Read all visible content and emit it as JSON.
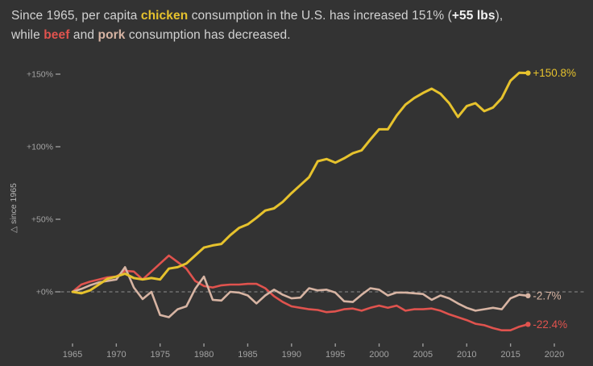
{
  "title": {
    "part1": "Since 1965, per capita ",
    "chicken_word": "chicken",
    "part2": " consumption in the U.S. has increased 151% (",
    "lbs_text": "+55 lbs",
    "part3": "),",
    "part4": "while ",
    "beef_word": "beef",
    "part5": " and ",
    "pork_word": "pork",
    "part6": " consumption has decreased."
  },
  "colors": {
    "background": "#333333",
    "title_text": "#d2d2d2",
    "chicken": "#e6c22d",
    "beef": "#e0534e",
    "pork": "#d7b4a3",
    "axis_text": "#a3a3a3",
    "tick_mark": "#9a9a9a",
    "zero_line": "#8c8c8c"
  },
  "chart_data": {
    "type": "line",
    "ylabel": "△ since 1965",
    "x": [
      1965,
      1966,
      1967,
      1968,
      1969,
      1970,
      1971,
      1972,
      1973,
      1974,
      1975,
      1976,
      1977,
      1978,
      1979,
      1980,
      1981,
      1982,
      1983,
      1984,
      1985,
      1986,
      1987,
      1988,
      1989,
      1990,
      1991,
      1992,
      1993,
      1994,
      1995,
      1996,
      1997,
      1998,
      1999,
      2000,
      2001,
      2002,
      2003,
      2004,
      2005,
      2006,
      2007,
      2008,
      2009,
      2010,
      2011,
      2012,
      2013,
      2014,
      2015,
      2016,
      2017
    ],
    "series": [
      {
        "name": "chicken",
        "color": "#e6c22d",
        "end_label": "+150.8%",
        "values": [
          0,
          -1,
          1,
          5,
          9,
          10.5,
          12.5,
          9.5,
          8.5,
          9.5,
          8.5,
          16,
          17,
          19.5,
          25,
          30.5,
          32,
          33,
          39,
          44,
          46.5,
          51,
          56,
          57.5,
          62,
          68,
          73.5,
          79,
          90,
          91.5,
          89,
          92,
          95.5,
          97.5,
          105,
          112,
          112,
          121.5,
          129,
          133.5,
          137,
          140,
          136.5,
          130,
          120.5,
          128,
          130,
          124.5,
          127,
          133.5,
          145.5,
          151,
          150.8
        ]
      },
      {
        "name": "beef",
        "color": "#e0534e",
        "end_label": "-22.4%",
        "values": [
          0,
          5,
          7,
          8.5,
          10,
          10.5,
          14.5,
          14,
          8.5,
          14,
          19.5,
          25,
          20.5,
          16,
          7.5,
          4,
          3,
          4.5,
          5,
          5,
          5.5,
          5.5,
          2.5,
          -3,
          -7,
          -10,
          -11,
          -12,
          -12.5,
          -14,
          -13.5,
          -12,
          -11.5,
          -13,
          -11,
          -9.5,
          -11,
          -9.5,
          -13,
          -12,
          -12,
          -11.5,
          -13,
          -15.5,
          -17.5,
          -19.5,
          -22,
          -23,
          -25,
          -26.5,
          -26.5,
          -24,
          -22.4
        ]
      },
      {
        "name": "pork",
        "color": "#d7b4a3",
        "end_label": "-2.7%",
        "values": [
          0,
          2,
          4.5,
          6.5,
          7.5,
          8.5,
          17,
          3,
          -5,
          0,
          -16,
          -17.5,
          -12,
          -10,
          2,
          10.5,
          -5.5,
          -6,
          0,
          -0.5,
          -2.5,
          -8,
          -2.5,
          1.5,
          -2,
          -4.5,
          -4,
          2.5,
          1,
          1.5,
          -0.5,
          -6.5,
          -7,
          -2,
          2.5,
          1.5,
          -2.5,
          -0.5,
          -0.5,
          -1,
          -1.5,
          -5.5,
          -2.5,
          -4.5,
          -8,
          -11,
          -13,
          -12,
          -11,
          -12,
          -4.5,
          -2,
          -2.7
        ]
      }
    ],
    "y_ticks": [
      {
        "label": "+150%",
        "value": 150
      },
      {
        "label": "+100%",
        "value": 100
      },
      {
        "label": "+50%",
        "value": 50
      },
      {
        "label": "+0%",
        "value": 0
      }
    ],
    "x_ticks": [
      1965,
      1970,
      1975,
      1980,
      1985,
      1990,
      1995,
      2000,
      2005,
      2010,
      2015,
      2020
    ],
    "xlim": [
      1963,
      2022
    ],
    "ylim": [
      -35,
      160
    ],
    "grid": false,
    "zero_line": {
      "value": 0,
      "style": "dashed"
    },
    "legend": "end-of-line-labels"
  }
}
